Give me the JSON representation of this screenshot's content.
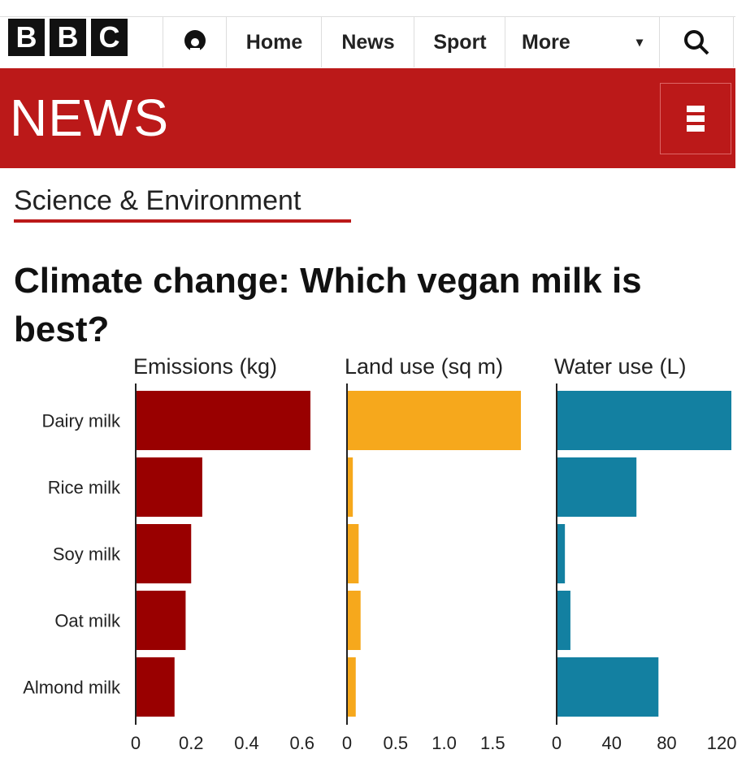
{
  "header": {
    "logo_letters": [
      "B",
      "B",
      "C"
    ],
    "nav": [
      "Home",
      "News",
      "Sport",
      "More"
    ],
    "more_arrow": "▾",
    "account_icon": "account-icon",
    "search_icon": "search-icon"
  },
  "banner": {
    "title": "NEWS",
    "menu_icon": "hamburger-icon"
  },
  "section": "Science & Environment",
  "title": "Climate change: Which vegan milk is best?",
  "chart_data": {
    "type": "bar",
    "orientation": "horizontal",
    "categories": [
      "Dairy milk",
      "Rice milk",
      "Soy milk",
      "Oat milk",
      "Almond milk"
    ],
    "panels": [
      {
        "name": "Emissions (kg)",
        "values": [
          0.63,
          0.24,
          0.2,
          0.18,
          0.14
        ],
        "ticks": [
          "0",
          "0.2",
          "0.4",
          "0.6"
        ],
        "tick_values": [
          0,
          0.2,
          0.4,
          0.6
        ],
        "xlim": [
          0,
          0.63
        ],
        "color": "#990000"
      },
      {
        "name": "Land use (sq m)",
        "values": [
          1.79,
          0.06,
          0.12,
          0.14,
          0.09
        ],
        "ticks": [
          "0",
          "0.5",
          "1.0",
          "1.5"
        ],
        "tick_values": [
          0,
          0.5,
          1.0,
          1.5
        ],
        "xlim": [
          0,
          1.79
        ],
        "color": "#f6a81c"
      },
      {
        "name": "Water use (L)",
        "values": [
          127,
          58,
          6,
          10,
          74
        ],
        "ticks": [
          "0",
          "40",
          "80",
          "120"
        ],
        "tick_values": [
          0,
          40,
          80,
          120
        ],
        "xlim": [
          0,
          127
        ],
        "color": "#1380a1"
      }
    ]
  }
}
